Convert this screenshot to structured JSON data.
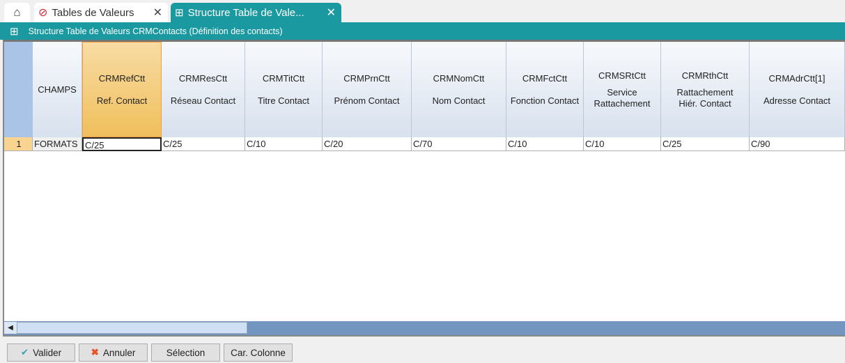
{
  "tabs": [
    {
      "label": "Tables de Valeurs",
      "icon": "forbidden-icon"
    },
    {
      "label": "Structure Table de Vale...",
      "icon": "grid-icon",
      "active": true
    }
  ],
  "window_title": "Structure Table de Valeurs CRMContacts (Définition des contacts)",
  "grid": {
    "first_header": "CHAMPS",
    "columns": [
      {
        "code": "CRMRefCtt",
        "label": "Ref. Contact"
      },
      {
        "code": "CRMResCtt",
        "label": "Réseau Contact"
      },
      {
        "code": "CRMTitCtt",
        "label": "Titre Contact"
      },
      {
        "code": "CRMPrnCtt",
        "label": "Prénom Contact"
      },
      {
        "code": "CRMNomCtt",
        "label": "Nom Contact"
      },
      {
        "code": "CRMFctCtt",
        "label": "Fonction Contact"
      },
      {
        "code": "CRMSRtCtt",
        "label": "Service Rattachement"
      },
      {
        "code": "CRMRthCtt",
        "label": "Rattachement Hiér. Contact"
      },
      {
        "code": "CRMAdrCtt[1]",
        "label": "Adresse Contact"
      }
    ],
    "rows": [
      {
        "num": "1",
        "name": "FORMATS",
        "values": [
          "C/25",
          "C/25",
          "C/10",
          "C/20",
          "C/70",
          "C/10",
          "C/10",
          "C/25",
          "C/90"
        ]
      }
    ]
  },
  "buttons": {
    "validate": "Valider",
    "cancel": "Annuler",
    "selection": "Sélection",
    "column": "Car. Colonne"
  },
  "colors": {
    "accent": "#1a9aa0",
    "selected_header": "#f0bf5c",
    "validate_icon": "#3aa6b0",
    "cancel_icon": "#e8542a"
  }
}
